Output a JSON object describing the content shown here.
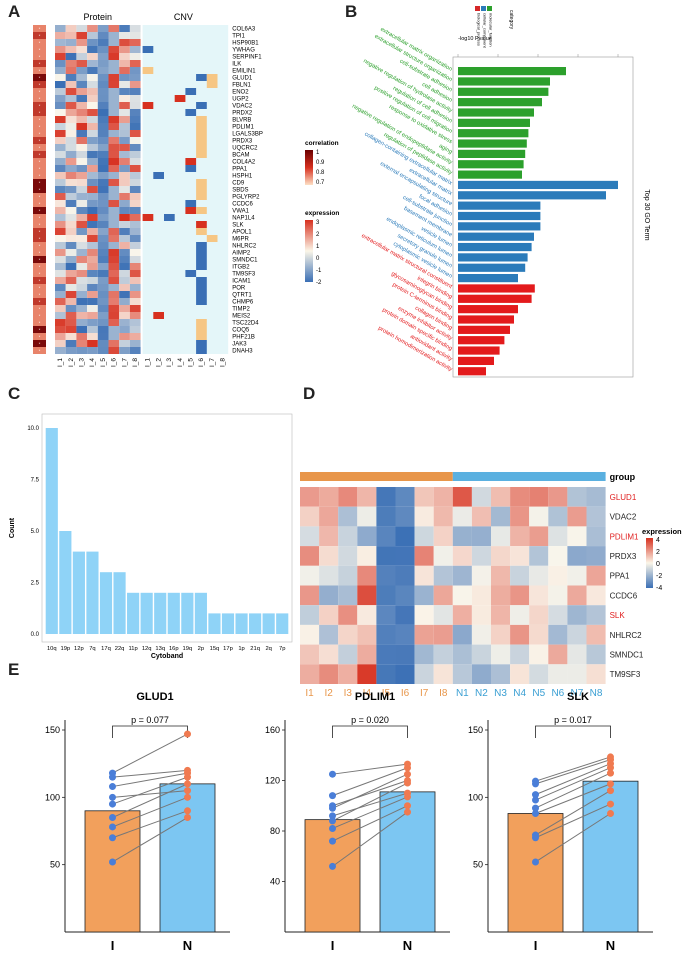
{
  "panels": {
    "a": "A",
    "b": "B",
    "c": "C",
    "d": "D",
    "e": "E"
  },
  "panelA": {
    "protein_title": "Protein",
    "cnv_title": "CNV",
    "genes": [
      "COL6A3",
      "TPI1",
      "HSP90B1",
      "YWHAG",
      "SERPINF1",
      "ILK",
      "EMILIN1",
      "GLUD1",
      "FBLN1",
      "ENO2",
      "UGP2",
      "VDAC2",
      "PRDX2",
      "BLVRB",
      "PDLIM1",
      "LGALS3BP",
      "PRDX3",
      "UQCRC2",
      "BCAM",
      "COL4A2",
      "PPA1",
      "HSPH1",
      "CD9",
      "SBDS",
      "PGLYRP2",
      "CCDC6",
      "VWA1",
      "NAP1L4",
      "SLK",
      "APOL1",
      "M6PR",
      "NHLRC2",
      "AIMP2",
      "SMNDC1",
      "ITGB2",
      "TM9SF3",
      "ICAM1",
      "POR",
      "QTRT1",
      "CHMP6",
      "TIMP2",
      "MEIS2",
      "TSC22D4",
      "COQ5",
      "PHF21B",
      "JAK3",
      "DNAH3"
    ],
    "col_labels": [
      "I_1",
      "I_2",
      "I_3",
      "I_4",
      "I_5",
      "I_6",
      "I_7",
      "I_8",
      "I_1",
      "I_2",
      "I_3",
      "I_4",
      "I_5",
      "I_6",
      "I_7",
      "I_8"
    ],
    "correlation_legend": {
      "title": "correlation",
      "ticks": [
        "1",
        "0.9",
        "0.8",
        "0.7"
      ]
    },
    "expression_legend": {
      "title": "expression",
      "ticks": [
        "3",
        "2",
        "1",
        "0",
        "-1",
        "-2"
      ]
    },
    "colors": {
      "red": "#d7301f",
      "blue": "#3a6fb5",
      "cnv_bg": "#e4f6f9",
      "dark_red": "#7a0a0a"
    }
  },
  "panelB": {
    "axis_label": "-log10 Pvalue",
    "side_label": "Top 30 GO Term",
    "legend_title": "category",
    "legend_items": [
      "biological_process",
      "cellular_component",
      "molecular_function"
    ],
    "legend_colors": [
      "#d62728",
      "#2b7bba",
      "#2ca02c"
    ],
    "chart_data": {
      "type": "bar",
      "orientation": "horizontal",
      "title": "Top 30 GO Term",
      "xlabel": "-log10 Pvalue",
      "xlim": [
        0,
        21
      ],
      "terms": [
        {
          "name": "extracellular matrix organization",
          "category": "biological_process",
          "value": 13.5
        },
        {
          "name": "extracellular structure organization",
          "category": "biological_process",
          "value": 11.5
        },
        {
          "name": "cell-substrate adhesion",
          "category": "biological_process",
          "value": 11.3
        },
        {
          "name": "cell adhesion",
          "category": "biological_process",
          "value": 10.5
        },
        {
          "name": "negative regulation of hydrolase activity",
          "category": "biological_process",
          "value": 9.5
        },
        {
          "name": "regulation of cell adhesion",
          "category": "biological_process",
          "value": 9.0
        },
        {
          "name": "positive regulation of cell migration",
          "category": "biological_process",
          "value": 8.8
        },
        {
          "name": "response to oxidative stress",
          "category": "biological_process",
          "value": 8.6
        },
        {
          "name": "aging",
          "category": "biological_process",
          "value": 8.4
        },
        {
          "name": "negative regulation of endopeptidase activity",
          "category": "biological_process",
          "value": 8.2
        },
        {
          "name": "regulation of peptidase activity",
          "category": "biological_process",
          "value": 8.0
        },
        {
          "name": "collagen-containing extracellular matrix",
          "category": "cellular_component",
          "value": 20.0
        },
        {
          "name": "extracellular matrix",
          "category": "cellular_component",
          "value": 18.5
        },
        {
          "name": "external encapsulating structure",
          "category": "cellular_component",
          "value": 10.3
        },
        {
          "name": "focal adhesion",
          "category": "cellular_component",
          "value": 10.3
        },
        {
          "name": "cell-substrate junction",
          "category": "cellular_component",
          "value": 10.3
        },
        {
          "name": "basement membrane",
          "category": "cellular_component",
          "value": 9.5
        },
        {
          "name": "vesicle lumen",
          "category": "cellular_component",
          "value": 9.2
        },
        {
          "name": "endoplasmic reticulum lumen",
          "category": "cellular_component",
          "value": 8.7
        },
        {
          "name": "secretory granule lumen",
          "category": "cellular_component",
          "value": 8.4
        },
        {
          "name": "cytoplasmic vesicle lumen",
          "category": "cellular_component",
          "value": 7.5
        },
        {
          "name": "extracellular matrix structural constituent",
          "category": "molecular_function",
          "value": 9.6
        },
        {
          "name": "integrin binding",
          "category": "molecular_function",
          "value": 9.2
        },
        {
          "name": "glycosaminoglycan binding",
          "category": "molecular_function",
          "value": 7.5
        },
        {
          "name": "protein C-terminus binding",
          "category": "molecular_function",
          "value": 7.0
        },
        {
          "name": "collagen binding",
          "category": "molecular_function",
          "value": 6.5
        },
        {
          "name": "enzyme inhibitor activity",
          "category": "molecular_function",
          "value": 5.8
        },
        {
          "name": "protein domain specific binding",
          "category": "molecular_function",
          "value": 5.2
        },
        {
          "name": "antioxidant activity",
          "category": "molecular_function",
          "value": 4.5
        },
        {
          "name": "protein homodimerization activity",
          "category": "molecular_function",
          "value": 3.5
        }
      ]
    }
  },
  "panelC": {
    "chart_data": {
      "type": "bar",
      "xlabel": "Cytoband",
      "ylabel": "Count",
      "ylim": [
        0,
        10
      ],
      "yticks": [
        "0.0",
        "2.5",
        "5.0",
        "7.5",
        "10.0"
      ],
      "categories": [
        "10q",
        "19p",
        "12p",
        "7q",
        "17q",
        "22q",
        "11p",
        "12q",
        "13q",
        "16p",
        "19q",
        "2p",
        "15q",
        "17p",
        "1p",
        "21q",
        "2q",
        "7p"
      ],
      "values": [
        10,
        5,
        4,
        4,
        3,
        3,
        2,
        2,
        2,
        2,
        2,
        2,
        1,
        1,
        1,
        1,
        1,
        1
      ]
    }
  },
  "panelD": {
    "group_label": "group",
    "legend_title": "expression",
    "legend_ticks": [
      "4",
      "2",
      "0",
      "-2",
      "-4"
    ],
    "genes": [
      {
        "name": "GLUD1",
        "highlight": true
      },
      {
        "name": "VDAC2",
        "highlight": false
      },
      {
        "name": "PDLIM1",
        "highlight": true
      },
      {
        "name": "PRDX3",
        "highlight": false
      },
      {
        "name": "PPA1",
        "highlight": false
      },
      {
        "name": "CCDC6",
        "highlight": false
      },
      {
        "name": "SLK",
        "highlight": true
      },
      {
        "name": "NHLRC2",
        "highlight": false
      },
      {
        "name": "SMNDC1",
        "highlight": false
      },
      {
        "name": "TM9SF3",
        "highlight": false
      }
    ],
    "samples": [
      "I1",
      "I2",
      "I3",
      "I4",
      "I5",
      "I6",
      "I7",
      "I8",
      "N1",
      "N2",
      "N3",
      "N4",
      "N5",
      "N6",
      "N7",
      "N8"
    ],
    "colors": {
      "I": "#e8964a",
      "N": "#5ab0e0",
      "highlight": "#e02020"
    }
  },
  "panelE": {
    "charts": [
      {
        "title": "GLUD1",
        "pvalue": "p = 0.077",
        "ylim": [
          0,
          150
        ],
        "yticks": [
          "50",
          "100",
          "150"
        ],
        "groups": [
          "I",
          "N"
        ],
        "means": [
          90,
          110
        ],
        "pairs": [
          [
            52,
            85
          ],
          [
            70,
            90
          ],
          [
            78,
            100
          ],
          [
            85,
            110
          ],
          [
            95,
            115
          ],
          [
            100,
            105
          ],
          [
            108,
            118
          ],
          [
            115,
            120
          ],
          [
            118,
            147
          ]
        ]
      },
      {
        "title": "PDLIM1",
        "pvalue": "p = 0.020",
        "ylim": [
          0,
          160
        ],
        "yticks": [
          "40",
          "80",
          "120",
          "160"
        ],
        "groups": [
          "I",
          "N"
        ],
        "means": [
          89,
          111
        ],
        "pairs": [
          [
            52,
            95
          ],
          [
            72,
            100
          ],
          [
            82,
            107
          ],
          [
            88,
            118
          ],
          [
            92,
            110
          ],
          [
            98,
            125
          ],
          [
            108,
            130
          ],
          [
            125,
            133
          ],
          [
            100,
            120
          ]
        ]
      },
      {
        "title": "SLK",
        "pvalue": "p = 0.017",
        "ylim": [
          0,
          150
        ],
        "yticks": [
          "50",
          "100",
          "150"
        ],
        "groups": [
          "I",
          "N"
        ],
        "means": [
          88,
          112
        ],
        "pairs": [
          [
            52,
            88
          ],
          [
            70,
            95
          ],
          [
            72,
            105
          ],
          [
            88,
            110
          ],
          [
            92,
            118
          ],
          [
            98,
            122
          ],
          [
            102,
            125
          ],
          [
            110,
            128
          ],
          [
            112,
            130
          ]
        ]
      }
    ],
    "colors": {
      "I": "#f2a05c",
      "N": "#7cc6f2",
      "dotI": "#4a7ed8",
      "dotN": "#f07a50"
    }
  }
}
